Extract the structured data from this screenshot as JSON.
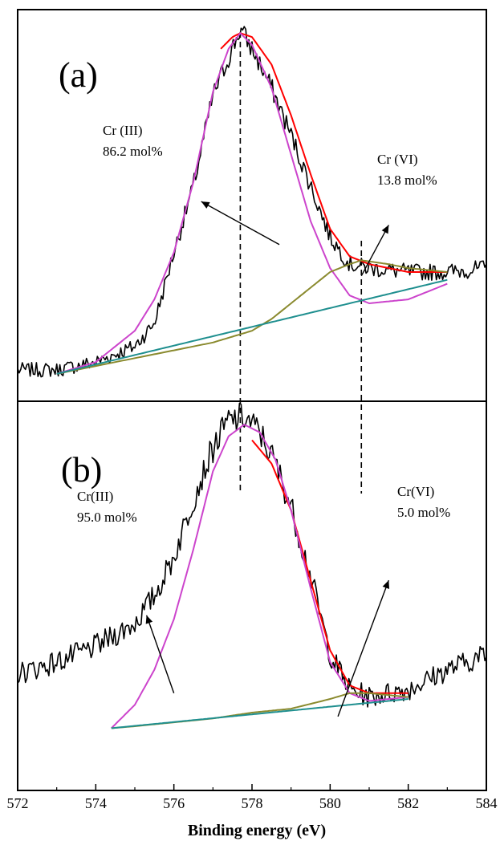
{
  "chart_data": {
    "type": "line",
    "xlabel": "Binding energy (eV)",
    "xlim": [
      572,
      584
    ],
    "x_ticks": [
      "572",
      "574",
      "576",
      "578",
      "580",
      "582",
      "584"
    ],
    "grid": false,
    "reference_lines_x": [
      577.7,
      580.8
    ],
    "panels": [
      {
        "label": "(a)",
        "annotations": [
          {
            "name": "Cr (III)",
            "value": "86.2 mol%",
            "arrow_from": [
              578.7,
              0.4
            ],
            "arrow_to": [
              576.7,
              0.51
            ]
          },
          {
            "name": "Cr (VI)",
            "value": "13.8 mol%",
            "arrow_from": [
              580.8,
              0.32
            ],
            "arrow_to": [
              581.5,
              0.45
            ]
          }
        ],
        "series": [
          {
            "color": "#000000",
            "noise": 0.018,
            "x": [
              572,
              573,
              574,
              575,
              575.5,
              576,
              576.5,
              577,
              577.7,
              578,
              578.5,
              579,
              579.5,
              580,
              580.5,
              581,
              582,
              583,
              584
            ],
            "y": [
              0.08,
              0.08,
              0.1,
              0.14,
              0.2,
              0.38,
              0.55,
              0.78,
              0.95,
              0.9,
              0.8,
              0.68,
              0.55,
              0.42,
              0.35,
              0.34,
              0.33,
              0.33,
              0.34
            ]
          },
          {
            "color": "#ff0000",
            "x": [
              577.2,
              577.5,
              577.7,
              578,
              578.5,
              579,
              579.5,
              580,
              580.5,
              581,
              581.5,
              582,
              583
            ],
            "y": [
              0.9,
              0.93,
              0.94,
              0.93,
              0.86,
              0.73,
              0.58,
              0.44,
              0.37,
              0.35,
              0.34,
              0.33,
              0.33
            ]
          },
          {
            "color": "#cc44cc",
            "x": [
              573,
              574,
              575,
              575.5,
              576,
              576.5,
              577,
              577.4,
              577.7,
              578,
              578.5,
              579,
              579.5,
              580,
              580.5,
              581,
              582,
              583
            ],
            "y": [
              0.07,
              0.1,
              0.18,
              0.26,
              0.38,
              0.56,
              0.79,
              0.9,
              0.94,
              0.91,
              0.8,
              0.63,
              0.46,
              0.34,
              0.27,
              0.25,
              0.26,
              0.3
            ]
          },
          {
            "color": "#8a8a2e",
            "x": [
              573,
              574,
              575,
              576,
              577,
              578,
              578.5,
              579,
              579.5,
              580,
              580.5,
              580.8,
              581.5,
              582,
              583
            ],
            "y": [
              0.07,
              0.09,
              0.11,
              0.13,
              0.15,
              0.18,
              0.21,
              0.25,
              0.29,
              0.33,
              0.35,
              0.36,
              0.35,
              0.34,
              0.33
            ]
          },
          {
            "color": "#1f8f8f",
            "x": [
              573,
              583
            ],
            "y": [
              0.07,
              0.31
            ]
          }
        ]
      },
      {
        "label": "(b)",
        "annotations": [
          {
            "name": "Cr(III)",
            "value": "95.0 mol%",
            "arrow_from": [
              576.0,
              0.25
            ],
            "arrow_to": [
              575.3,
              0.45
            ]
          },
          {
            "name": "Cr(VI)",
            "value": "5.0 mol%",
            "arrow_from": [
              580.2,
              0.19
            ],
            "arrow_to": [
              581.5,
              0.54
            ]
          }
        ],
        "series": [
          {
            "color": "#000000",
            "noise": 0.025,
            "x": [
              572,
              573,
              574,
              575,
              575.5,
              576,
              576.5,
              577,
              577.4,
              577.8,
              578.2,
              578.6,
              579,
              579.5,
              580,
              580.5,
              581,
              582,
              583,
              584
            ],
            "y": [
              0.3,
              0.33,
              0.37,
              0.43,
              0.5,
              0.6,
              0.75,
              0.88,
              0.95,
              0.96,
              0.92,
              0.84,
              0.73,
              0.55,
              0.35,
              0.26,
              0.24,
              0.26,
              0.31,
              0.35
            ]
          },
          {
            "color": "#ff0000",
            "x": [
              578,
              578.5,
              579,
              579.5,
              580,
              580.5,
              581,
              582
            ],
            "y": [
              0.9,
              0.84,
              0.72,
              0.54,
              0.36,
              0.27,
              0.25,
              0.25
            ]
          },
          {
            "color": "#cc44cc",
            "x": [
              574.4,
              575,
              575.5,
              576,
              576.5,
              577,
              577.4,
              577.8,
              578.2,
              578.6,
              579,
              579.5,
              580,
              580.5,
              581,
              582
            ],
            "y": [
              0.16,
              0.22,
              0.31,
              0.44,
              0.62,
              0.82,
              0.91,
              0.94,
              0.92,
              0.85,
              0.72,
              0.52,
              0.33,
              0.25,
              0.23,
              0.24
            ]
          },
          {
            "color": "#8a8a2e",
            "x": [
              574.4,
              575,
              576,
              577,
              578,
              579,
              580,
              580.5,
              581,
              581.5,
              582
            ],
            "y": [
              0.16,
              0.165,
              0.175,
              0.185,
              0.2,
              0.21,
              0.235,
              0.25,
              0.25,
              0.245,
              0.24
            ]
          },
          {
            "color": "#1f8f8f",
            "x": [
              574.4,
              582
            ],
            "y": [
              0.16,
              0.235
            ]
          }
        ]
      }
    ]
  }
}
